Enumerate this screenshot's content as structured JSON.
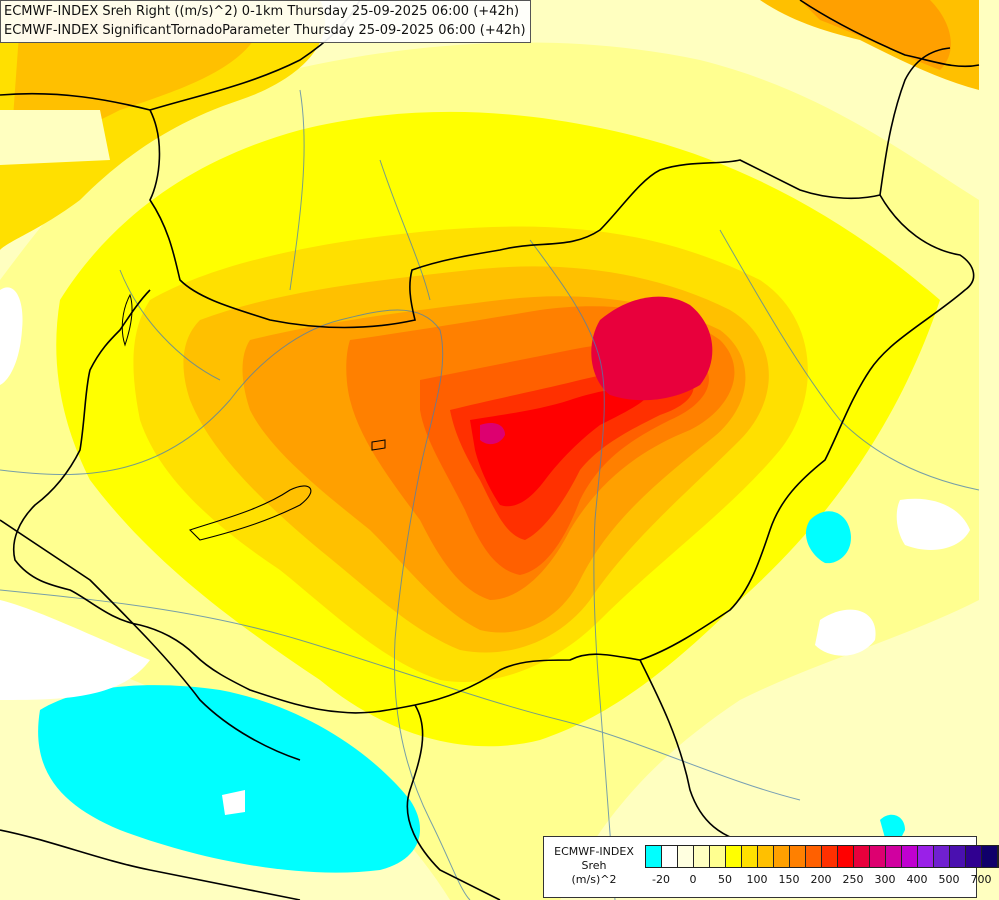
{
  "header": {
    "line1": "ECMWF-INDEX Sreh Right ((m/s)^2) 0-1km Thursday 25-09-2025 06:00 (+42h)",
    "line2": "ECMWF-INDEX SignificantTornadoParameter Thursday 25-09-2025 06:00 (+42h)"
  },
  "legend": {
    "title1": "ECMWF-INDEX",
    "title2": "Sreh",
    "unit": "(m/s)^2",
    "colors": [
      "#00ffff",
      "#ffffff",
      "#ffffe0",
      "#ffffc0",
      "#ffff90",
      "#ffff00",
      "#ffe000",
      "#ffc000",
      "#ffa000",
      "#ff8000",
      "#ff6000",
      "#ff3000",
      "#ff0000",
      "#e8003c",
      "#dd0070",
      "#d000a0",
      "#c000d0",
      "#9a20e8",
      "#7020d0",
      "#4a10b0",
      "#300090",
      "#10006a"
    ],
    "ticks": [
      "-20",
      "0",
      "50",
      "100",
      "150",
      "200",
      "250",
      "300",
      "400",
      "500",
      "700"
    ]
  },
  "map": {
    "region": "Hungary and surrounding area",
    "field": "storm-relative helicity 0-1km"
  }
}
